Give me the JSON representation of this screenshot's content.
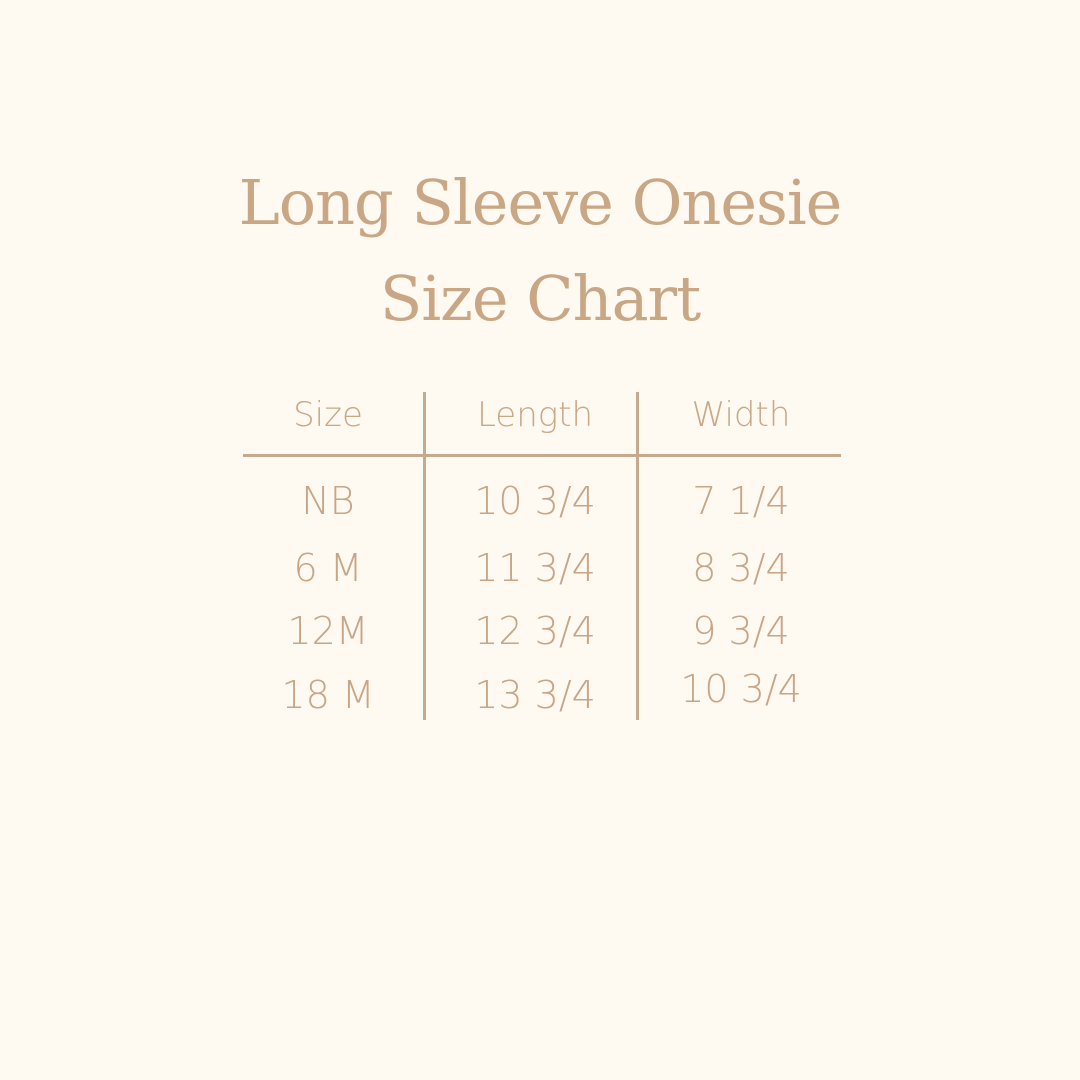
{
  "title": {
    "line1": "Long Sleeve Onesie",
    "line2": "Size Chart"
  },
  "table": {
    "headers": [
      "Size",
      "Length",
      "Width"
    ],
    "rows": [
      [
        "NB",
        "10 3/4",
        "7 1/4"
      ],
      [
        "6 M",
        "11 3/4",
        "8 3/4"
      ],
      [
        "12M",
        "12 3/4",
        "9 3/4"
      ],
      [
        "18 M",
        "13 3/4",
        "10 3/4"
      ]
    ]
  },
  "colors": {
    "background": "#fef9f1",
    "text": "#c9a886",
    "rule": "#c6aa8e"
  }
}
